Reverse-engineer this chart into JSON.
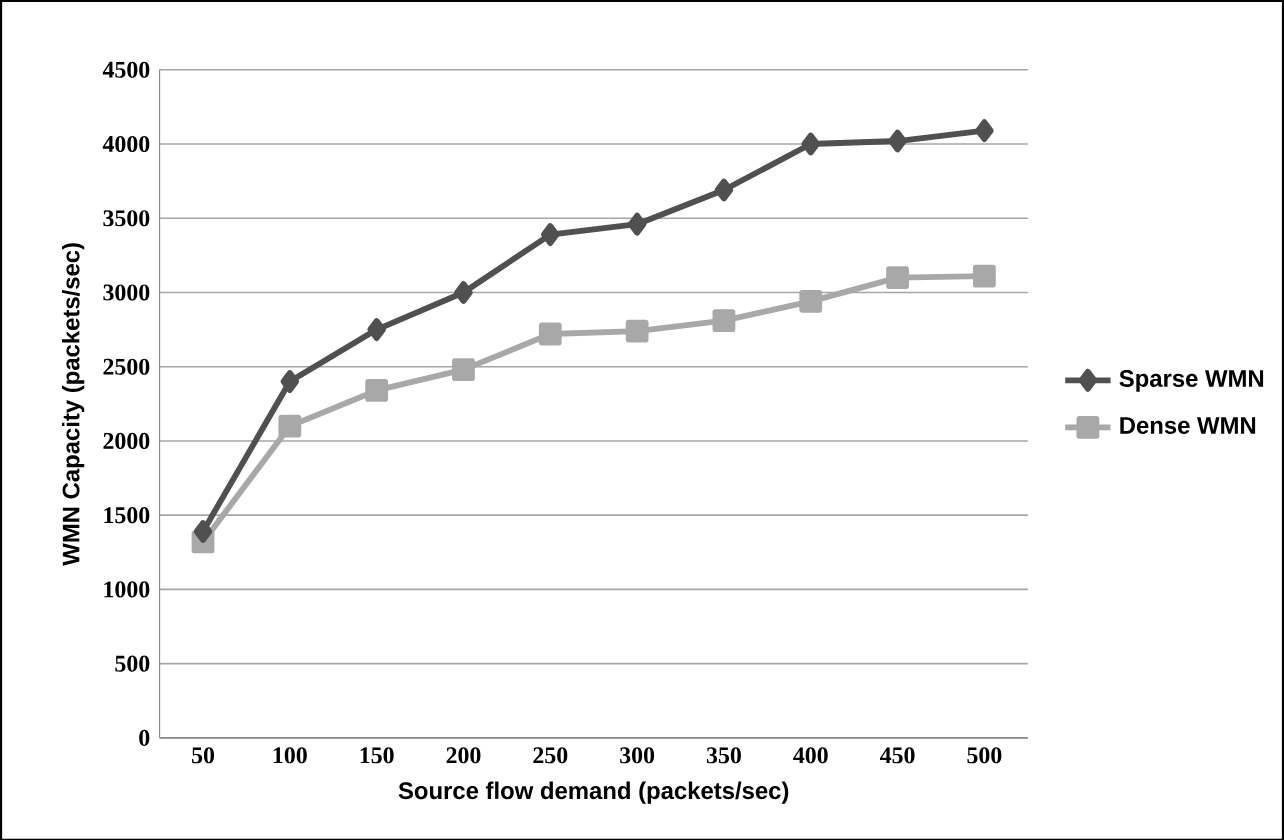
{
  "chart_data": {
    "type": "line",
    "xlabel": "Source flow  demand (packets/sec)",
    "ylabel": "WMN Capacity (packets/sec)",
    "categories": [
      "50",
      "100",
      "150",
      "200",
      "250",
      "300",
      "350",
      "400",
      "450",
      "500"
    ],
    "series": [
      {
        "name": "Sparse WMN",
        "color": "#505050",
        "marker": "diamond",
        "values": [
          1390,
          2400,
          2750,
          3000,
          3390,
          3460,
          3690,
          4000,
          4020,
          4090
        ]
      },
      {
        "name": "Dense WMN",
        "color": "#a8a8a8",
        "marker": "square",
        "values": [
          1320,
          2100,
          2340,
          2480,
          2720,
          2740,
          2810,
          2940,
          3100,
          3110
        ]
      }
    ],
    "ylim": [
      0,
      4500
    ],
    "yticks": [
      0,
      500,
      1000,
      1500,
      2000,
      2500,
      3000,
      3500,
      4000,
      4500
    ],
    "grid": "y",
    "legend": "right",
    "line_style": "solid"
  }
}
